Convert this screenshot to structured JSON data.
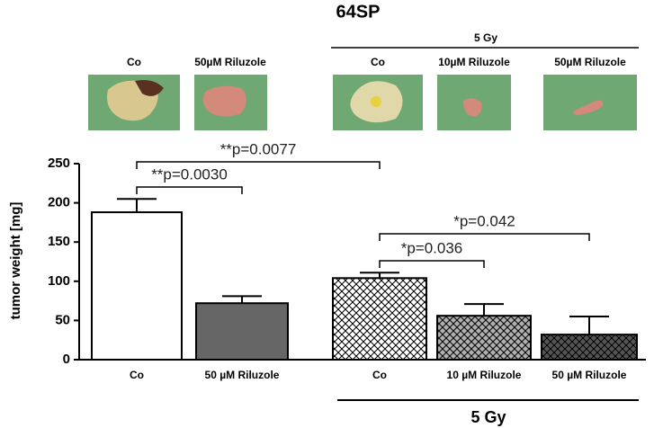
{
  "chart_data": {
    "type": "bar",
    "title": "64SP",
    "photos": {
      "labels": [
        "Co",
        "50µM Riluzole",
        "Co",
        "10µM Riluzole",
        "50µM Riluzole"
      ],
      "group": "5 Gy"
    },
    "ylabel": "tumor weight [mg]",
    "categories": [
      "Co",
      "50 µM Riluzole",
      "Co",
      "10 µM Riluzole",
      "50 µM Riluzole"
    ],
    "values": [
      188,
      72,
      104,
      56,
      32
    ],
    "errors": [
      17,
      9,
      7,
      15,
      23
    ],
    "colors": [
      "#ffffff",
      "#666666",
      "#ffffff",
      "#b0b0b0",
      "#555555"
    ],
    "hatch": [
      false,
      false,
      true,
      true,
      true
    ],
    "group": "5 Gy",
    "annotations": [
      {
        "text": "**p=0.0077",
        "from": 0,
        "to": 2
      },
      {
        "text": "**p=0.0030",
        "from": 0,
        "to": 1
      },
      {
        "text": "*p=0.042",
        "from": 2,
        "to": 4
      },
      {
        "text": "*p=0.036",
        "from": 2,
        "to": 3
      }
    ],
    "ylim": [
      0,
      250
    ],
    "yticks": [
      0,
      50,
      100,
      150,
      200,
      250
    ]
  }
}
